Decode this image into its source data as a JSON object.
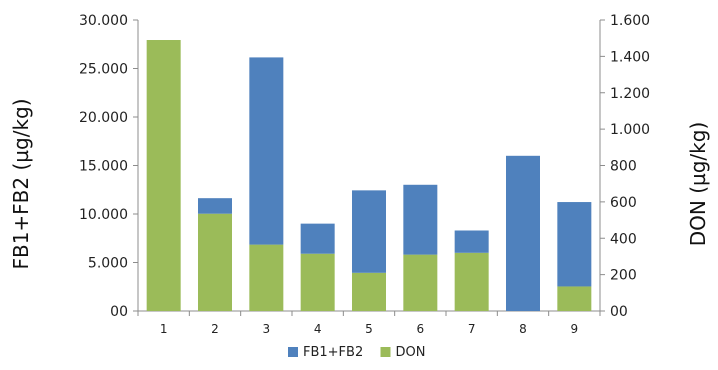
{
  "chart_data": {
    "type": "bar",
    "stacked": true,
    "categories": [
      "1",
      "2",
      "3",
      "4",
      "5",
      "6",
      "7",
      "8",
      "9"
    ],
    "series": [
      {
        "name": "DON",
        "axis": "right",
        "color": "#9bbb59",
        "values": [
          1490,
          535,
          365,
          315,
          210,
          310,
          320,
          0,
          135
        ]
      },
      {
        "name": "FB1+FB2",
        "axis": "left",
        "color": "#4f81bd",
        "values": [
          0,
          1600,
          19300,
          3100,
          8500,
          7200,
          2300,
          16000,
          8700
        ]
      }
    ],
    "yleft": {
      "label": "FB1+FB2 (µg/kg)",
      "ylim": [
        0,
        30000
      ],
      "ticks": [
        0,
        5000,
        10000,
        15000,
        20000,
        25000,
        30000
      ],
      "tick_labels": [
        "00",
        "5.000",
        "10.000",
        "15.000",
        "20.000",
        "25.000",
        "30.000"
      ]
    },
    "yright": {
      "label": "DON (µg/kg)",
      "ylim": [
        0,
        1600
      ],
      "ticks": [
        0,
        200,
        400,
        600,
        800,
        1000,
        1200,
        1400,
        1600
      ],
      "tick_labels": [
        "00",
        "200",
        "400",
        "600",
        "800",
        "1.000",
        "1.200",
        "1.400",
        "1.600"
      ]
    },
    "legend": {
      "position": "bottom",
      "entries": [
        "FB1+FB2",
        "DON"
      ]
    },
    "grid": false
  }
}
